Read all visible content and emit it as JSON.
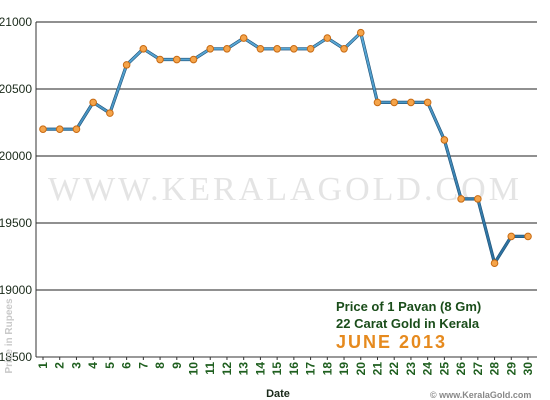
{
  "chart_data": {
    "type": "line",
    "x": [
      1,
      2,
      3,
      4,
      5,
      6,
      7,
      8,
      9,
      10,
      11,
      12,
      13,
      14,
      15,
      16,
      17,
      18,
      19,
      20,
      21,
      22,
      23,
      24,
      25,
      26,
      27,
      28,
      29,
      30
    ],
    "series": [
      {
        "values": [
          20200,
          20200,
          20200,
          20400,
          20320,
          20680,
          20800,
          20720,
          20720,
          20720,
          20800,
          20800,
          20880,
          20800,
          20800,
          20800,
          20800,
          20880,
          20800,
          20920,
          20400,
          20400,
          20400,
          20400,
          20120,
          19680,
          19680,
          19200,
          19400,
          19400
        ]
      }
    ],
    "xlabel": "Date",
    "ylabel": "Price in Rupees",
    "ylim": [
      18500,
      21000
    ],
    "yticks": [
      "21000",
      "20500",
      "20000",
      "19500",
      "19000",
      "18500"
    ],
    "xticks": [
      "1",
      "2",
      "3",
      "4",
      "5",
      "6",
      "7",
      "8",
      "9",
      "10",
      "11",
      "12",
      "13",
      "14",
      "15",
      "16",
      "17",
      "18",
      "19",
      "20",
      "21",
      "22",
      "23",
      "24",
      "25",
      "26",
      "27",
      "28",
      "29",
      "30"
    ],
    "grid": true,
    "annotations": {
      "line1": "Price of 1 Pavan (8 Gm)",
      "line2": "22 Carat Gold in Kerala",
      "line3": "JUNE 2013"
    },
    "watermark": "WWW.KERALAGOLD.COM",
    "credit": "© www.KeralaGold.com",
    "colors": {
      "line": "#2f7fb0",
      "marker_fill": "#f5a44a",
      "marker_stroke": "#c76a12",
      "grid": "#222222",
      "axis": "#333333"
    }
  }
}
